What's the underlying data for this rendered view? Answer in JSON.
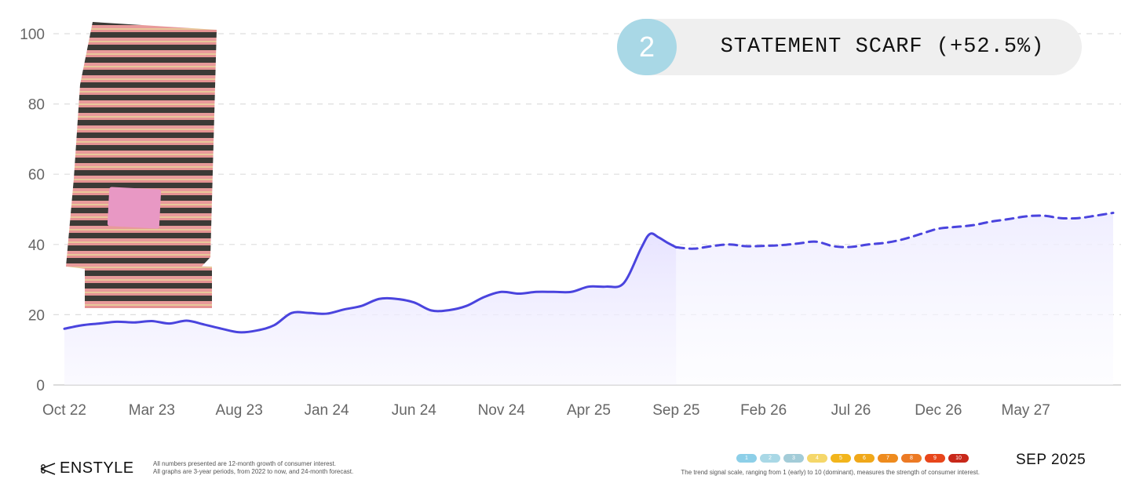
{
  "chart_data": {
    "type": "line",
    "title": "STATEMENT SCARF (+52.5%)",
    "rank": "2",
    "ylim": [
      0,
      100
    ],
    "yticks": [
      0,
      20,
      40,
      60,
      80,
      100
    ],
    "xlim": [
      0,
      60
    ],
    "xticks": [
      {
        "label": "Oct 22",
        "x": 0
      },
      {
        "label": "Mar 23",
        "x": 5
      },
      {
        "label": "Aug 23",
        "x": 10
      },
      {
        "label": "Jan 24",
        "x": 15
      },
      {
        "label": "Jun 24",
        "x": 20
      },
      {
        "label": "Nov 24",
        "x": 25
      },
      {
        "label": "Apr 25",
        "x": 30
      },
      {
        "label": "Sep 25",
        "x": 35
      },
      {
        "label": "Feb 26",
        "x": 40
      },
      {
        "label": "Jul 26",
        "x": 45
      },
      {
        "label": "Dec 26",
        "x": 50
      },
      {
        "label": "May 27",
        "x": 55
      }
    ],
    "series": [
      {
        "name": "actual",
        "style": "solid",
        "x": [
          0,
          1,
          2,
          3,
          4,
          5,
          6,
          7,
          8,
          9,
          10,
          11,
          12,
          13,
          14,
          15,
          16,
          17,
          18,
          19,
          20,
          21,
          22,
          23,
          24,
          25,
          26,
          27,
          28,
          29,
          30,
          31,
          32,
          33,
          33.5,
          34,
          34.5,
          35
        ],
        "values": [
          16,
          17,
          17.5,
          18,
          17.8,
          18.2,
          17.5,
          18.3,
          17.2,
          16,
          15,
          15.5,
          17,
          20.5,
          20.5,
          20.3,
          21.5,
          22.5,
          24.5,
          24.5,
          23.5,
          21.2,
          21.3,
          22.5,
          25,
          26.5,
          26,
          26.5,
          26.5,
          26.5,
          28,
          28,
          29,
          39,
          43,
          42,
          40.5,
          39.2
        ]
      },
      {
        "name": "forecast",
        "style": "dashed",
        "x": [
          35,
          36,
          37,
          38,
          39,
          40,
          41,
          42,
          43,
          44,
          45,
          46,
          47,
          48,
          49,
          50,
          51,
          52,
          53,
          54,
          55,
          56,
          57,
          58,
          59,
          60
        ],
        "values": [
          39.2,
          38.8,
          39.5,
          40,
          39.5,
          39.6,
          39.8,
          40.3,
          40.8,
          39.5,
          39.3,
          40,
          40.5,
          41.5,
          43,
          44.5,
          45,
          45.5,
          46.5,
          47.2,
          48,
          48.2,
          47.5,
          47.5,
          48.2,
          49
        ]
      }
    ],
    "colors": {
      "line": "#4a44de",
      "fill": "#ece9ff",
      "grid": "#dddddd",
      "axis_text": "#666666"
    }
  },
  "footer": {
    "brand": "ENSTYLE",
    "note_line1": "All numbers presented are 12-month growth of consumer interest.",
    "note_line2": "All graphs are 3-year periods, from 2022 to now, and 24-month forecast.",
    "scale_note": "The trend signal scale, ranging from 1 (early) to 10 (dominant), measures the strength of consumer interest.",
    "date": "SEP 2025"
  },
  "scale": [
    {
      "label": "1",
      "color": "#8dcfe8"
    },
    {
      "label": "2",
      "color": "#a9d8e6"
    },
    {
      "label": "3",
      "color": "#a3ccd8"
    },
    {
      "label": "4",
      "color": "#f5d76a"
    },
    {
      "label": "5",
      "color": "#f2b51c"
    },
    {
      "label": "6",
      "color": "#f0a81a"
    },
    {
      "label": "7",
      "color": "#ee8b1e"
    },
    {
      "label": "8",
      "color": "#ec7a24"
    },
    {
      "label": "9",
      "color": "#e8461b"
    },
    {
      "label": "10",
      "color": "#c8281a"
    }
  ]
}
